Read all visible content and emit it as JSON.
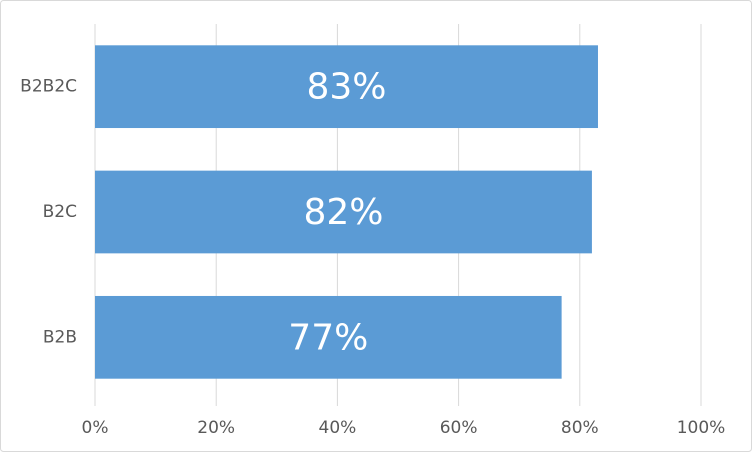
{
  "chart_data": {
    "type": "hbar",
    "categories": [
      "B2B2C",
      "B2C",
      "B2B"
    ],
    "values": [
      83,
      82,
      77
    ],
    "value_labels": [
      "83%",
      "82%",
      "77%"
    ],
    "color": "#5b9bd5",
    "xlim": [
      0,
      100
    ],
    "xticks": [
      {
        "value": 0,
        "label": "0%"
      },
      {
        "value": 20,
        "label": "20%"
      },
      {
        "value": 40,
        "label": "40%"
      },
      {
        "value": 60,
        "label": "60%"
      },
      {
        "value": 80,
        "label": "80%"
      },
      {
        "value": 100,
        "label": "100%"
      }
    ],
    "grid": true
  }
}
